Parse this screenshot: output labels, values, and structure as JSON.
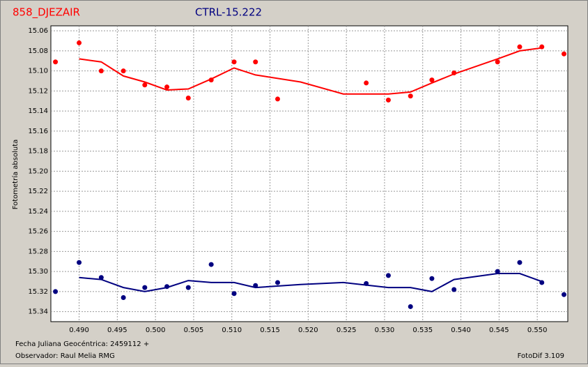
{
  "chart_data": {
    "type": "scatter",
    "ylabel": "Fotometría absoluta",
    "xlabel": "Fecha Juliana Geocéntrica: 2459112 +",
    "observer": "Observador: Raul Melia RMG",
    "software": "FotoDif 3.109",
    "ylim": [
      15.055,
      15.35
    ],
    "y_inverted": true,
    "yticks": [
      15.06,
      15.08,
      {
        "value": 15.1,
        "label": "15.10"
      },
      15.12,
      15.14,
      15.16,
      15.18,
      {
        "value": 15.2,
        "label": "15.20"
      },
      15.22,
      15.24,
      15.26,
      15.28,
      {
        "value": 15.3,
        "label": "15.30"
      },
      15.32,
      15.34
    ],
    "xlim": [
      0.4863,
      0.554
    ],
    "xticks": [
      {
        "value": 0.49,
        "label": "0.490"
      },
      0.495,
      {
        "value": 0.5,
        "label": "0.500"
      },
      0.505,
      {
        "value": 0.51,
        "label": "0.510"
      },
      0.515,
      {
        "value": 0.52,
        "label": "0.520"
      },
      0.525,
      {
        "value": 0.53,
        "label": "0.530"
      },
      0.535,
      {
        "value": 0.54,
        "label": "0.540"
      },
      0.545,
      {
        "value": 0.55,
        "label": "0.550"
      }
    ],
    "grid": true,
    "x": [
      0.4869,
      0.49,
      0.4929,
      0.4958,
      0.4986,
      0.5015,
      0.5043,
      0.5073,
      0.5103,
      0.5131,
      0.516,
      0.5276,
      0.5305,
      0.5334,
      0.5362,
      0.5391,
      0.5448,
      0.5477,
      0.5506,
      0.5535
    ],
    "fit_x": [
      0.49,
      0.4929,
      0.4958,
      0.4986,
      0.5015,
      0.5043,
      0.5073,
      0.5103,
      0.5131,
      0.519,
      0.5246,
      0.5305,
      0.5334,
      0.5362,
      0.5391,
      0.5448,
      0.5477,
      0.5506
    ],
    "series": [
      {
        "name": "858_DJEZAIR",
        "color": "#ff0000",
        "values": [
          15.091,
          15.072,
          15.1,
          15.1,
          15.114,
          15.116,
          15.127,
          15.109,
          15.091,
          15.091,
          15.128,
          15.112,
          15.129,
          15.125,
          15.109,
          15.102,
          15.091,
          15.076,
          15.076,
          15.083
        ],
        "fit": [
          15.088,
          15.091,
          15.105,
          15.111,
          15.119,
          15.118,
          15.108,
          15.097,
          15.104,
          15.111,
          15.123,
          15.123,
          15.121,
          15.112,
          15.103,
          15.088,
          15.08,
          15.077
        ]
      },
      {
        "name": "CTRL-15.222",
        "color": "#000080",
        "values": [
          15.32,
          15.291,
          15.306,
          15.326,
          15.316,
          15.315,
          15.316,
          15.293,
          15.322,
          15.314,
          15.311,
          15.312,
          15.304,
          15.335,
          15.307,
          15.318,
          15.3,
          15.291,
          15.311,
          15.323
        ],
        "fit": [
          15.306,
          15.308,
          15.316,
          15.32,
          15.316,
          15.309,
          15.311,
          15.311,
          15.316,
          15.313,
          15.311,
          15.316,
          15.316,
          15.32,
          15.308,
          15.302,
          15.302,
          15.31
        ]
      }
    ]
  }
}
